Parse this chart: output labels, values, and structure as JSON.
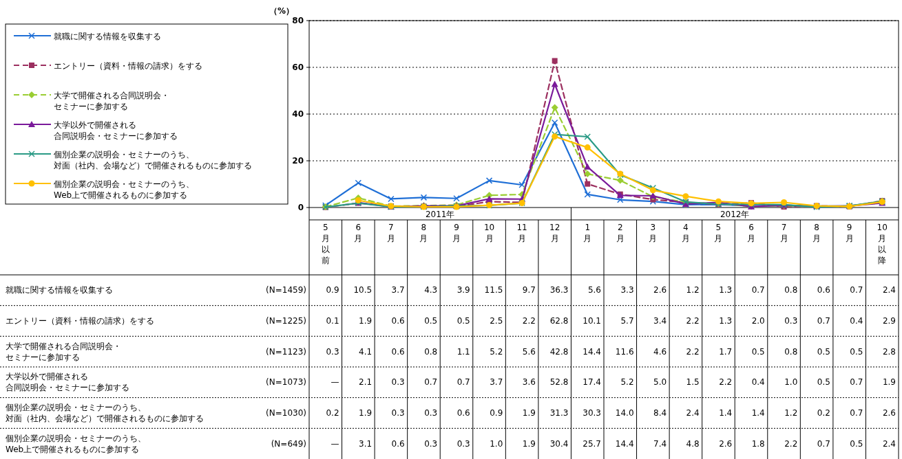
{
  "chart_data": {
    "type": "line",
    "ylabel": "（%）",
    "ylim": [
      0,
      80
    ],
    "yticks": [
      0,
      20,
      40,
      60,
      80
    ],
    "grid": "y",
    "legend": "left",
    "data_labels": true,
    "categories": [
      "5月以前",
      "6月",
      "7月",
      "8月",
      "9月",
      "10月",
      "11月",
      "12月",
      "1月",
      "2月",
      "3月",
      "4月",
      "5月",
      "6月",
      "7月",
      "8月",
      "9月",
      "10月以降"
    ],
    "annotations": [
      "2011年",
      "2012年",
      "(N=1459)",
      "(N=1225)",
      "(N=1123)",
      "(N=1073)",
      "(N=1030)",
      "(N=649)"
    ],
    "series": [
      {
        "name": "就職に関する情報を収集する",
        "color": "#1f6fd6",
        "marker": "cross",
        "line_style": "solid",
        "values": [
          0.9,
          10.5,
          3.7,
          4.3,
          3.9,
          11.5,
          9.7,
          36.3,
          5.6,
          3.3,
          2.6,
          1.2,
          1.3,
          0.7,
          0.8,
          0.6,
          0.7,
          2.4
        ],
        "value_labels": [
          "0.9",
          "10.5",
          "3.7",
          "4.3",
          "3.9",
          "11.5",
          "9.7",
          "36.3",
          "5.6",
          "3.3",
          "2.6",
          "1.2",
          "1.3",
          "0.7",
          "0.8",
          "0.6",
          "0.7",
          "2.4"
        ]
      },
      {
        "name": "エントリー（資料・情報の請求）をする",
        "color": "#9b2f5f",
        "marker": "square",
        "line_style": "dashed",
        "values": [
          0.1,
          1.9,
          0.6,
          0.5,
          0.5,
          2.5,
          2.2,
          62.8,
          10.1,
          5.7,
          3.4,
          2.2,
          1.3,
          2.0,
          0.3,
          0.7,
          0.4,
          2.9
        ],
        "value_labels": [
          "0.1",
          "1.9",
          "0.6",
          "0.5",
          "0.5",
          "2.5",
          "2.2",
          "62.8",
          "10.1",
          "5.7",
          "3.4",
          "2.2",
          "1.3",
          "2.0",
          "0.3",
          "0.7",
          "0.4",
          "2.9"
        ]
      },
      {
        "name": "大学で開催される合同説明会・セミナーに参加する",
        "color": "#9acd32",
        "marker": "diamond",
        "line_style": "dashed",
        "values": [
          0.3,
          4.1,
          0.6,
          0.8,
          1.1,
          5.2,
          5.6,
          42.8,
          14.4,
          11.6,
          4.6,
          2.2,
          1.7,
          0.5,
          0.8,
          0.5,
          0.5,
          2.8
        ],
        "value_labels": [
          "0.3",
          "4.1",
          "0.6",
          "0.8",
          "1.1",
          "5.2",
          "5.6",
          "42.8",
          "14.4",
          "11.6",
          "4.6",
          "2.2",
          "1.7",
          "0.5",
          "0.8",
          "0.5",
          "0.5",
          "2.8"
        ]
      },
      {
        "name": "大学以外で開催される合同説明会・セミナーに参加する",
        "color": "#7a1a9a",
        "marker": "triangle",
        "line_style": "solid",
        "values": [
          null,
          2.1,
          0.3,
          0.7,
          0.7,
          3.7,
          3.6,
          52.8,
          17.4,
          5.2,
          5.0,
          1.5,
          2.2,
          0.4,
          1.0,
          0.5,
          0.7,
          1.9
        ],
        "value_labels": [
          "—",
          "2.1",
          "0.3",
          "0.7",
          "0.7",
          "3.7",
          "3.6",
          "52.8",
          "17.4",
          "5.2",
          "5.0",
          "1.5",
          "2.2",
          "0.4",
          "1.0",
          "0.5",
          "0.7",
          "1.9"
        ]
      },
      {
        "name": "個別企業の説明会・セミナーのうち、対面（社内、会場など）で開催されるものに参加する",
        "color": "#2a9a85",
        "marker": "cross",
        "line_style": "solid",
        "values": [
          0.2,
          1.9,
          0.3,
          0.3,
          0.6,
          0.9,
          1.9,
          31.3,
          30.3,
          14.0,
          8.4,
          2.4,
          1.4,
          1.4,
          1.2,
          0.2,
          0.7,
          2.6
        ],
        "value_labels": [
          "0.2",
          "1.9",
          "0.3",
          "0.3",
          "0.6",
          "0.9",
          "1.9",
          "31.3",
          "30.3",
          "14.0",
          "8.4",
          "2.4",
          "1.4",
          "1.4",
          "1.2",
          "0.2",
          "0.7",
          "2.6"
        ]
      },
      {
        "name": "個別企業の説明会・セミナーのうち、Web上で開催されるものに参加する",
        "color": "#ffc000",
        "marker": "circle",
        "line_style": "solid",
        "values": [
          null,
          3.1,
          0.6,
          0.3,
          0.3,
          1.0,
          1.9,
          30.4,
          25.7,
          14.4,
          7.4,
          4.8,
          2.6,
          1.8,
          2.2,
          0.7,
          0.5,
          2.4
        ],
        "value_labels": [
          "—",
          "3.1",
          "0.6",
          "0.3",
          "0.3",
          "1.0",
          "1.9",
          "30.4",
          "25.7",
          "14.4",
          "7.4",
          "4.8",
          "2.6",
          "1.8",
          "2.2",
          "0.7",
          "0.5",
          "2.4"
        ]
      }
    ]
  }
}
